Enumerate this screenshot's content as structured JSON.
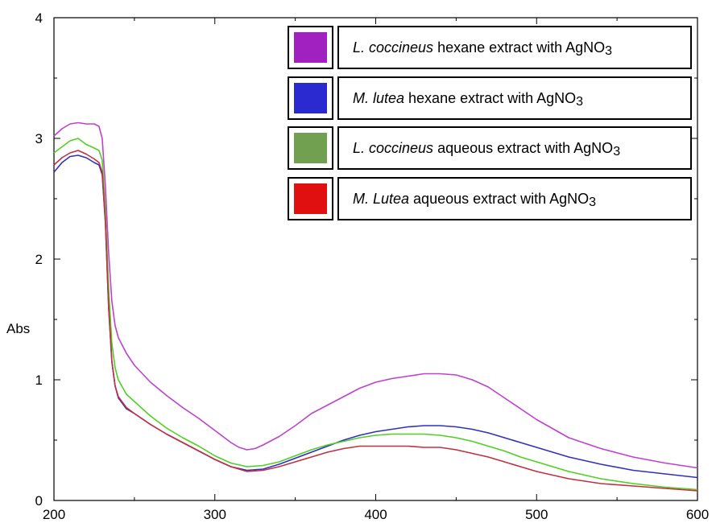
{
  "chart_data": {
    "type": "line",
    "xlabel": "",
    "ylabel": "Abs",
    "xlim": [
      200,
      600
    ],
    "ylim": [
      0,
      4
    ],
    "x_ticks": [
      200,
      300,
      400,
      500,
      600
    ],
    "y_ticks": [
      0,
      1,
      2,
      3,
      4
    ],
    "x_minor_step": 50,
    "y_minor_step": 0.5,
    "grid": false,
    "legend_position": "top-right",
    "series": [
      {
        "name": "L. coccineus hexane extract with AgNO3",
        "legend": {
          "species": "L. coccineus",
          "text": " hexane extract with AgNO",
          "sub": "3"
        },
        "color": "#c040d0",
        "swatch_color": "#a020c0",
        "points": [
          [
            200,
            3.02
          ],
          [
            205,
            3.08
          ],
          [
            210,
            3.12
          ],
          [
            215,
            3.13
          ],
          [
            220,
            3.12
          ],
          [
            225,
            3.12
          ],
          [
            228,
            3.1
          ],
          [
            230,
            3.0
          ],
          [
            232,
            2.6
          ],
          [
            234,
            2.05
          ],
          [
            236,
            1.65
          ],
          [
            238,
            1.45
          ],
          [
            240,
            1.35
          ],
          [
            245,
            1.22
          ],
          [
            250,
            1.12
          ],
          [
            260,
            0.98
          ],
          [
            270,
            0.87
          ],
          [
            280,
            0.77
          ],
          [
            290,
            0.68
          ],
          [
            300,
            0.58
          ],
          [
            310,
            0.48
          ],
          [
            315,
            0.44
          ],
          [
            320,
            0.42
          ],
          [
            325,
            0.43
          ],
          [
            330,
            0.46
          ],
          [
            340,
            0.53
          ],
          [
            350,
            0.62
          ],
          [
            360,
            0.72
          ],
          [
            370,
            0.79
          ],
          [
            380,
            0.86
          ],
          [
            390,
            0.93
          ],
          [
            400,
            0.98
          ],
          [
            410,
            1.01
          ],
          [
            420,
            1.03
          ],
          [
            430,
            1.05
          ],
          [
            440,
            1.05
          ],
          [
            450,
            1.04
          ],
          [
            460,
            1.0
          ],
          [
            470,
            0.94
          ],
          [
            480,
            0.85
          ],
          [
            490,
            0.76
          ],
          [
            500,
            0.67
          ],
          [
            520,
            0.52
          ],
          [
            540,
            0.43
          ],
          [
            560,
            0.36
          ],
          [
            580,
            0.31
          ],
          [
            600,
            0.27
          ]
        ]
      },
      {
        "name": "M. lutea hexane extract with AgNO3",
        "legend": {
          "species": "M. lutea",
          "text": " hexane extract with AgNO",
          "sub": "3"
        },
        "color": "#3030c0",
        "swatch_color": "#2a2ad0",
        "points": [
          [
            200,
            2.72
          ],
          [
            205,
            2.8
          ],
          [
            210,
            2.85
          ],
          [
            215,
            2.86
          ],
          [
            220,
            2.84
          ],
          [
            225,
            2.8
          ],
          [
            228,
            2.78
          ],
          [
            230,
            2.7
          ],
          [
            232,
            2.3
          ],
          [
            234,
            1.6
          ],
          [
            236,
            1.15
          ],
          [
            238,
            0.95
          ],
          [
            240,
            0.85
          ],
          [
            245,
            0.76
          ],
          [
            250,
            0.72
          ],
          [
            260,
            0.63
          ],
          [
            270,
            0.55
          ],
          [
            280,
            0.48
          ],
          [
            290,
            0.41
          ],
          [
            300,
            0.34
          ],
          [
            310,
            0.28
          ],
          [
            320,
            0.25
          ],
          [
            330,
            0.26
          ],
          [
            340,
            0.3
          ],
          [
            350,
            0.35
          ],
          [
            360,
            0.4
          ],
          [
            370,
            0.45
          ],
          [
            380,
            0.5
          ],
          [
            390,
            0.54
          ],
          [
            400,
            0.57
          ],
          [
            410,
            0.59
          ],
          [
            420,
            0.61
          ],
          [
            430,
            0.62
          ],
          [
            440,
            0.62
          ],
          [
            450,
            0.61
          ],
          [
            460,
            0.59
          ],
          [
            470,
            0.56
          ],
          [
            480,
            0.52
          ],
          [
            490,
            0.48
          ],
          [
            500,
            0.44
          ],
          [
            520,
            0.36
          ],
          [
            540,
            0.3
          ],
          [
            560,
            0.25
          ],
          [
            580,
            0.22
          ],
          [
            600,
            0.19
          ]
        ]
      },
      {
        "name": "L. coccineus aqueous extract with AgNO3",
        "legend": {
          "species": "L. coccineus",
          "text": " aqueous extract with AgNO",
          "sub": "3"
        },
        "color": "#50d020",
        "swatch_color": "#70a050",
        "points": [
          [
            200,
            2.88
          ],
          [
            205,
            2.93
          ],
          [
            210,
            2.98
          ],
          [
            215,
            3.0
          ],
          [
            220,
            2.95
          ],
          [
            225,
            2.92
          ],
          [
            228,
            2.9
          ],
          [
            230,
            2.82
          ],
          [
            232,
            2.4
          ],
          [
            234,
            1.75
          ],
          [
            236,
            1.3
          ],
          [
            238,
            1.1
          ],
          [
            240,
            1.0
          ],
          [
            245,
            0.88
          ],
          [
            250,
            0.82
          ],
          [
            260,
            0.7
          ],
          [
            270,
            0.6
          ],
          [
            280,
            0.52
          ],
          [
            290,
            0.45
          ],
          [
            300,
            0.37
          ],
          [
            310,
            0.31
          ],
          [
            320,
            0.28
          ],
          [
            330,
            0.29
          ],
          [
            340,
            0.32
          ],
          [
            350,
            0.37
          ],
          [
            360,
            0.42
          ],
          [
            370,
            0.46
          ],
          [
            380,
            0.49
          ],
          [
            390,
            0.52
          ],
          [
            400,
            0.54
          ],
          [
            410,
            0.55
          ],
          [
            420,
            0.55
          ],
          [
            430,
            0.55
          ],
          [
            440,
            0.54
          ],
          [
            450,
            0.52
          ],
          [
            460,
            0.49
          ],
          [
            470,
            0.45
          ],
          [
            480,
            0.41
          ],
          [
            490,
            0.36
          ],
          [
            500,
            0.32
          ],
          [
            520,
            0.24
          ],
          [
            540,
            0.18
          ],
          [
            560,
            0.14
          ],
          [
            580,
            0.11
          ],
          [
            600,
            0.09
          ]
        ]
      },
      {
        "name": "M. Lutea aqueous extract with AgNO3",
        "legend": {
          "species": "M. Lutea",
          "text": " aqueous extract with AgNO",
          "sub": "3"
        },
        "color": "#c03040",
        "swatch_color": "#e01010",
        "points": [
          [
            200,
            2.78
          ],
          [
            205,
            2.84
          ],
          [
            210,
            2.88
          ],
          [
            215,
            2.9
          ],
          [
            220,
            2.87
          ],
          [
            225,
            2.83
          ],
          [
            228,
            2.8
          ],
          [
            230,
            2.72
          ],
          [
            232,
            2.3
          ],
          [
            234,
            1.6
          ],
          [
            236,
            1.15
          ],
          [
            238,
            0.95
          ],
          [
            240,
            0.86
          ],
          [
            245,
            0.77
          ],
          [
            250,
            0.72
          ],
          [
            260,
            0.63
          ],
          [
            270,
            0.55
          ],
          [
            280,
            0.48
          ],
          [
            290,
            0.41
          ],
          [
            300,
            0.34
          ],
          [
            310,
            0.28
          ],
          [
            320,
            0.24
          ],
          [
            330,
            0.25
          ],
          [
            340,
            0.28
          ],
          [
            350,
            0.32
          ],
          [
            360,
            0.36
          ],
          [
            370,
            0.4
          ],
          [
            380,
            0.43
          ],
          [
            390,
            0.45
          ],
          [
            400,
            0.45
          ],
          [
            410,
            0.45
          ],
          [
            420,
            0.45
          ],
          [
            430,
            0.44
          ],
          [
            440,
            0.44
          ],
          [
            450,
            0.42
          ],
          [
            460,
            0.39
          ],
          [
            470,
            0.36
          ],
          [
            480,
            0.32
          ],
          [
            490,
            0.28
          ],
          [
            500,
            0.24
          ],
          [
            520,
            0.18
          ],
          [
            540,
            0.14
          ],
          [
            560,
            0.12
          ],
          [
            580,
            0.1
          ],
          [
            600,
            0.08
          ]
        ]
      }
    ]
  }
}
